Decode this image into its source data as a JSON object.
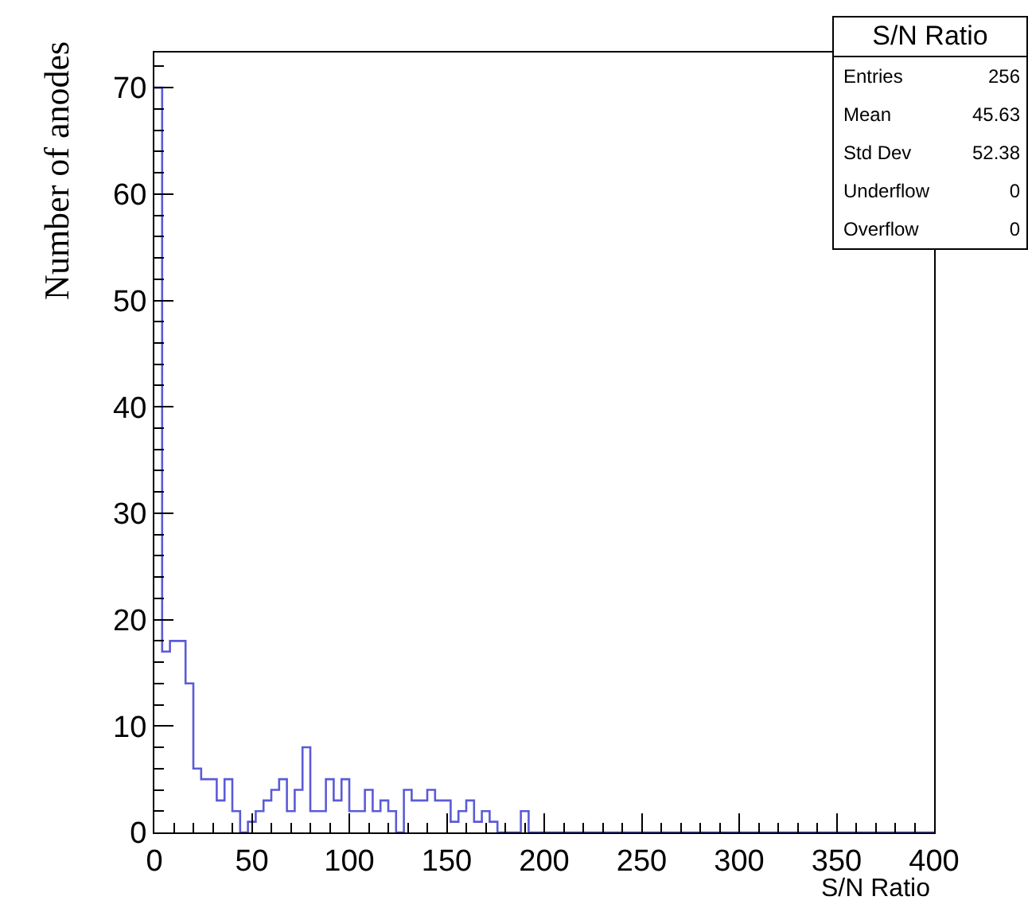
{
  "chart_data": {
    "type": "histogram",
    "title": "S/N Ratio",
    "xlabel": "S/N Ratio",
    "ylabel": "Number of anodes",
    "bins": [
      0,
      4,
      8,
      12,
      16,
      20,
      24,
      28,
      32,
      36,
      40,
      44,
      48,
      52,
      56,
      60,
      64,
      68,
      72,
      76,
      80,
      84,
      88,
      92,
      96,
      100,
      104,
      108,
      112,
      116,
      120,
      124,
      128,
      132,
      136,
      140,
      144,
      148,
      152,
      156,
      160,
      164,
      168,
      172,
      176,
      180,
      184,
      188,
      192,
      196,
      200,
      204,
      208,
      212,
      216,
      220,
      224,
      228,
      232,
      236,
      240,
      244,
      248,
      252,
      256,
      260,
      264,
      268,
      272,
      276,
      280,
      284,
      288,
      292,
      296,
      300,
      304,
      308,
      312,
      316,
      320,
      324,
      328,
      332,
      336,
      340,
      344,
      348,
      352,
      356,
      360,
      364,
      368,
      372,
      376,
      380,
      384,
      388,
      392,
      396,
      400
    ],
    "values": [
      70,
      17,
      18,
      18,
      14,
      6,
      5,
      5,
      3,
      5,
      2,
      0,
      1,
      2,
      3,
      4,
      5,
      2,
      4,
      8,
      2,
      2,
      5,
      3,
      5,
      2,
      2,
      4,
      2,
      3,
      2,
      0,
      4,
      3,
      3,
      4,
      3,
      3,
      1,
      2,
      3,
      1,
      2,
      1,
      0,
      0,
      0,
      2,
      0,
      0,
      0,
      0,
      0,
      0,
      0,
      0,
      0,
      0,
      0,
      0,
      0,
      0,
      0,
      0,
      0,
      0,
      0,
      0,
      0,
      0,
      0,
      0,
      0,
      0,
      0,
      0,
      0,
      0,
      0,
      0,
      0,
      0,
      0,
      0,
      0,
      0,
      0,
      0,
      0,
      0,
      0,
      0,
      0,
      0,
      0,
      0,
      0,
      0,
      0,
      0
    ],
    "color": "#5b5bd6",
    "xlim": [
      0,
      400
    ],
    "xticks": [
      0,
      50,
      100,
      150,
      200,
      250,
      300,
      350,
      400
    ],
    "ylim": [
      0,
      73.3
    ],
    "yticks": [
      0,
      10,
      20,
      30,
      40,
      50,
      60,
      70
    ],
    "grid": false,
    "annotations": [
      "Entries",
      "256",
      "Mean",
      "45.63",
      "Std Dev",
      "52.38",
      "Underflow",
      "0",
      "Overflow",
      "0"
    ]
  }
}
